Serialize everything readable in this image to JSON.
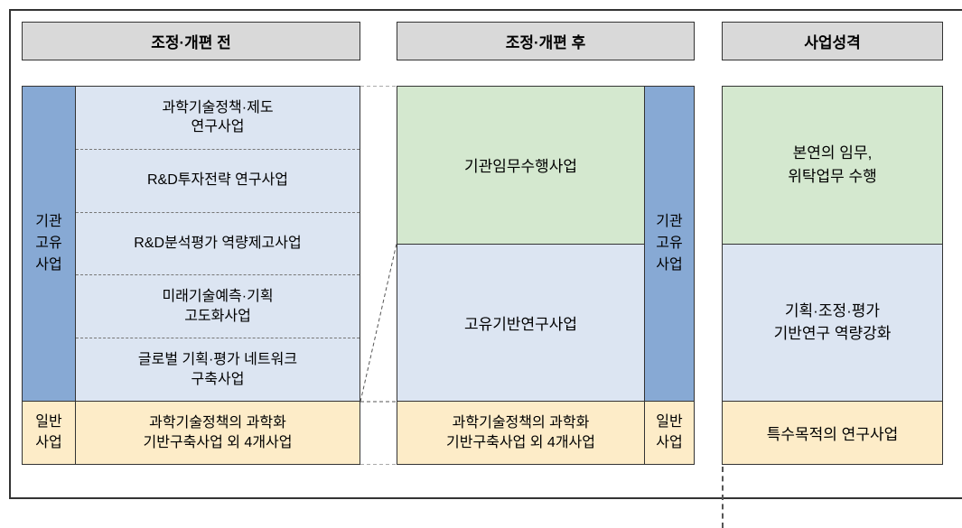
{
  "headers": {
    "before": "조정·개편 전",
    "after": "조정·개편 후",
    "nature": "사업성격"
  },
  "col1": {
    "side_label": "기관\n고유\n사업",
    "items": [
      "과학기술정책·제도\n연구사업",
      "R&D투자전략 연구사업",
      "R&D분석평가 역량제고사업",
      "미래기술예측·기획\n고도화사업",
      "글로벌 기획·평가 네트워크\n구축사업"
    ],
    "bottom_label": "일반\n사업",
    "bottom_content": "과학기술정책의 과학화\n기반구축사업 외 4개사업"
  },
  "col2": {
    "green": "기관임무수행사업",
    "blue": "고유기반연구사업",
    "side_label": "기관\n고유\n사업",
    "bottom_content": "과학기술정책의 과학화\n기반구축사업 외 4개사업",
    "bottom_label": "일반\n사업"
  },
  "col3": {
    "green": "본연의 임무,\n위탁업무 수행",
    "blue": "기획·조정·평가\n기반연구 역량강화",
    "cream": "특수목적의 연구사업"
  },
  "colors": {
    "header_bg": "#d9d9d9",
    "blue_dark": "#87a9d4",
    "blue_light": "#dce5f2",
    "green_light": "#d4e8cf",
    "cream": "#fdecc8",
    "border": "#333333"
  }
}
